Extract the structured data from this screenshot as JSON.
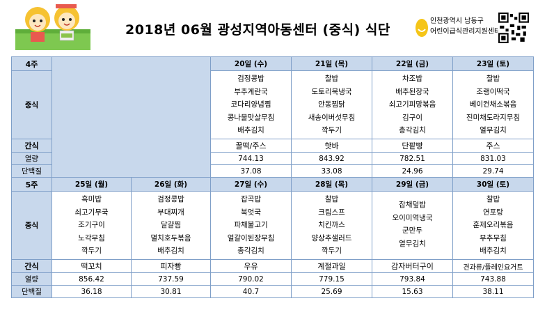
{
  "header": {
    "title": "2018년 06월 광성지역아동센터 (중식) 식단",
    "logo_line1": "인천광역시 남동구",
    "logo_line2": "어린이급식관리지원센터"
  },
  "labels": {
    "lunch": "중식",
    "snack": "간식",
    "kcal": "열량",
    "protein": "단백질"
  },
  "weeks": [
    {
      "name": "4주",
      "days": [
        {
          "date": "20일 (수)",
          "menu": [
            "검정콩밥",
            "부추계란국",
            "코다리양념찜",
            "콩나물맛살무침",
            "배추김치"
          ],
          "snack": "꿀떡/주스",
          "kcal": "744.13",
          "protein": "37.08"
        },
        {
          "date": "21일 (목)",
          "menu": [
            "찰밥",
            "도토리묵냉국",
            "안동찜닭",
            "새송이버섯무침",
            "깍두기"
          ],
          "snack": "핫바",
          "kcal": "843.92",
          "protein": "33.08"
        },
        {
          "date": "22일 (금)",
          "menu": [
            "차조밥",
            "배추된장국",
            "쇠고기피망볶음",
            "김구이",
            "총각김치"
          ],
          "snack": "단팥빵",
          "kcal": "782.51",
          "protein": "24.96"
        },
        {
          "date": "23일 (토)",
          "menu": [
            "찰밥",
            "조랭이떡국",
            "베이컨채소볶음",
            "진미채도라지무침",
            "열무김치"
          ],
          "snack": "주스",
          "kcal": "831.03",
          "protein": "29.74"
        }
      ]
    },
    {
      "name": "5주",
      "days": [
        {
          "date": "25일 (월)",
          "menu": [
            "흑미밥",
            "쇠고기무국",
            "조기구이",
            "노각무침",
            "깍두기"
          ],
          "snack": "떡꼬치",
          "kcal": "856.42",
          "protein": "36.18"
        },
        {
          "date": "26일 (화)",
          "menu": [
            "검정콩밥",
            "부대찌개",
            "달걀찜",
            "멸치호두볶음",
            "배추김치"
          ],
          "snack": "피자빵",
          "kcal": "737.59",
          "protein": "30.81"
        },
        {
          "date": "27일 (수)",
          "menu": [
            "잡곡밥",
            "북엇국",
            "파채불고기",
            "얼갈이된장무침",
            "총각김치"
          ],
          "snack": "우유",
          "kcal": "790.02",
          "protein": "40.7"
        },
        {
          "date": "28일 (목)",
          "menu": [
            "찰밥",
            "크림스프",
            "치킨까스",
            "양상추샐러드",
            "깍두기"
          ],
          "snack": "계절과일",
          "kcal": "779.15",
          "protein": "25.69"
        },
        {
          "date": "29일 (금)",
          "menu": [
            "잡채덮밥",
            "오이미역냉국",
            "군만두",
            "열무김치"
          ],
          "snack": "감자버터구이",
          "kcal": "793.84",
          "protein": "15.63"
        },
        {
          "date": "30일 (토)",
          "menu": [
            "찰밥",
            "연포탕",
            "훈제오리볶음",
            "부추무침",
            "배추김치"
          ],
          "snack": "견과류/플레인요거트",
          "kcal": "743.88",
          "protein": "38.11"
        }
      ]
    }
  ],
  "colors": {
    "header_bg": "#c8d8ec",
    "border": "#7f9fc8"
  }
}
